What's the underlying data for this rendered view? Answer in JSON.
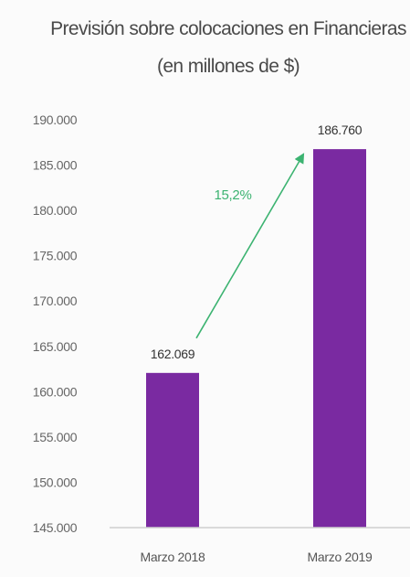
{
  "colors": {
    "bar": "#7a2aa1",
    "arrow": "#3cb371",
    "axis": "#d0d0d0"
  },
  "chart_data": {
    "type": "bar",
    "title": "Previsión sobre colocaciones en Financieras",
    "subtitle": "(en millones de $)",
    "categories": [
      "Marzo 2018",
      "Marzo 2019"
    ],
    "values": [
      162069,
      186760
    ],
    "value_labels": [
      "162.069",
      "186.760"
    ],
    "ylim": [
      145000,
      190000
    ],
    "yticks": [
      145000,
      150000,
      155000,
      160000,
      165000,
      170000,
      175000,
      180000,
      185000,
      190000
    ],
    "ytick_labels": [
      "145.000",
      "150.000",
      "155.000",
      "160.000",
      "165.000",
      "170.000",
      "175.000",
      "180.000",
      "185.000",
      "190.000"
    ],
    "annotation": {
      "text": "15,2%",
      "type": "arrow",
      "from_category": "Marzo 2018",
      "to_category": "Marzo 2019"
    },
    "grid": false,
    "legend": "none"
  }
}
